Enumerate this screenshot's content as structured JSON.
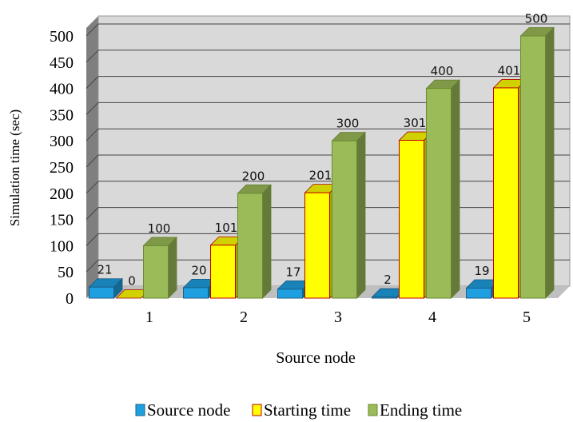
{
  "chart_data": {
    "type": "bar",
    "categories": [
      "1",
      "2",
      "3",
      "4",
      "5"
    ],
    "series": [
      {
        "name": "Source node",
        "values": [
          21,
          20,
          17,
          2,
          19
        ],
        "color": "#1ea0e0",
        "border": "#1a5f8a"
      },
      {
        "name": "Starting time",
        "values": [
          0,
          101,
          201,
          301,
          401
        ],
        "color": "#ffff00",
        "border": "#c00000"
      },
      {
        "name": "Ending time",
        "values": [
          100,
          200,
          300,
          400,
          500
        ],
        "color": "#9bbb59",
        "border": "#6a8a30"
      }
    ],
    "title": "",
    "xlabel": "Source node",
    "ylabel": "Simulation time (sec)",
    "ylim": [
      0,
      500
    ],
    "yticks": [
      "0",
      "50",
      "100",
      "150",
      "200",
      "250",
      "300",
      "350",
      "400",
      "450",
      "500"
    ],
    "grid": true,
    "legend_position": "bottom",
    "three_d": true
  },
  "colors": {
    "wall": "#d9d9d9",
    "floor": "#bfbfbf",
    "side_wall": "#7f7f7f",
    "grid": "#444444"
  }
}
